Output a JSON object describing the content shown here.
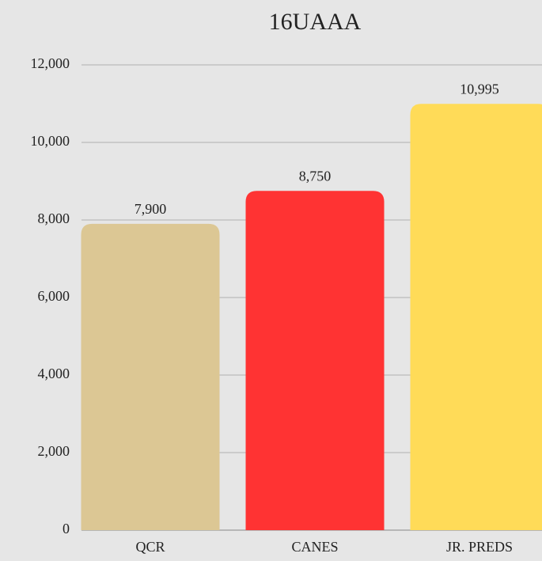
{
  "chart_data": {
    "type": "bar",
    "title": "16UAAA",
    "categories": [
      "QCR",
      "CANES",
      "JR. PREDS"
    ],
    "values": [
      7900,
      8750,
      10995
    ],
    "value_labels": [
      "7,900",
      "8,750",
      "10,995"
    ],
    "colors": [
      "#dcc794",
      "#ff3333",
      "#ffdb58"
    ],
    "ylim": [
      0,
      12000
    ],
    "yticks": [
      0,
      {
        "value": 2000,
        "label": "2,000"
      },
      {
        "value": 4000,
        "label": "4,000"
      },
      {
        "value": 6000,
        "label": "6,000"
      },
      {
        "value": 8000,
        "label": "8,000"
      },
      {
        "value": 10000,
        "label": "10,000"
      },
      {
        "value": 12000,
        "label": "12,000"
      }
    ],
    "grid": true
  }
}
